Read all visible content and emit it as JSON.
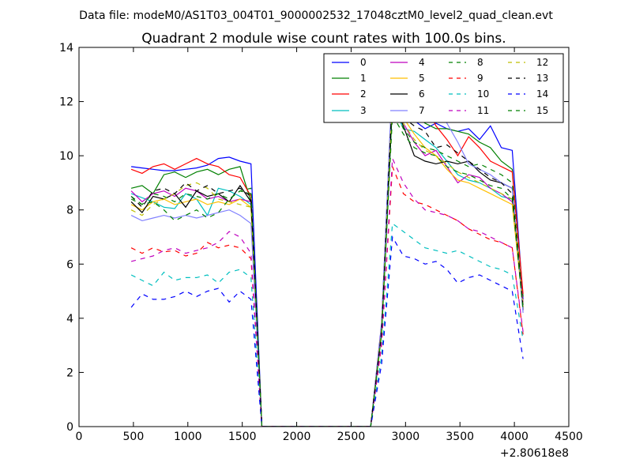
{
  "suptitle": "Data file: modeM0/AS1T03_004T01_9000002532_17048cztM0_level2_quad_clean.evt",
  "chart_data": {
    "type": "line",
    "title": "Quadrant 2 module wise count rates with 100.0s bins.",
    "xlabel": "",
    "ylabel": "",
    "x_offset_label": "+2.80618e8",
    "xlim": [
      0,
      4500
    ],
    "ylim": [
      0,
      14
    ],
    "xticks": [
      0,
      500,
      1000,
      1500,
      2000,
      2500,
      3000,
      3500,
      4000,
      4500
    ],
    "yticks": [
      0,
      2,
      4,
      6,
      8,
      10,
      12,
      14
    ],
    "grid": false,
    "legend": {
      "placement": "top-right",
      "columns": 4
    },
    "x": [
      480,
      580,
      680,
      780,
      880,
      980,
      1080,
      1180,
      1280,
      1380,
      1480,
      1580,
      1680,
      1780,
      1880,
      1980,
      2080,
      2180,
      2280,
      2380,
      2480,
      2580,
      2680,
      2780,
      2880,
      2980,
      3080,
      3180,
      3280,
      3380,
      3480,
      3580,
      3680,
      3780,
      3880,
      3980,
      4080
    ],
    "series": [
      {
        "name": "0",
        "color": "#0000ff",
        "dash": "solid",
        "values": [
          9.6,
          9.55,
          9.5,
          9.45,
          9.45,
          9.5,
          9.55,
          9.65,
          9.9,
          9.95,
          9.8,
          9.7,
          0,
          0,
          0,
          0,
          0,
          0,
          0,
          0,
          0,
          0,
          0,
          3.8,
          12.8,
          12.0,
          11.3,
          11.0,
          11.2,
          11.0,
          10.9,
          11.0,
          10.6,
          11.1,
          10.3,
          10.2,
          4.7
        ]
      },
      {
        "name": "1",
        "color": "#008000",
        "dash": "solid",
        "values": [
          8.8,
          8.9,
          8.6,
          9.3,
          9.4,
          9.2,
          9.4,
          9.5,
          9.3,
          9.5,
          9.6,
          8.3,
          0,
          0,
          0,
          0,
          0,
          0,
          0,
          0,
          0,
          0,
          0,
          3.6,
          12.5,
          11.6,
          11.5,
          11.2,
          11.0,
          11.0,
          10.9,
          10.8,
          10.5,
          10.3,
          9.8,
          9.5,
          4.8
        ]
      },
      {
        "name": "2",
        "color": "#ff0000",
        "dash": "solid",
        "values": [
          9.5,
          9.35,
          9.6,
          9.7,
          9.5,
          9.7,
          9.9,
          9.7,
          9.6,
          9.3,
          9.2,
          8.5,
          0,
          0,
          0,
          0,
          0,
          0,
          0,
          0,
          0,
          0,
          0,
          3.7,
          12.3,
          11.5,
          11.3,
          11.9,
          11.1,
          10.6,
          10.0,
          10.7,
          10.3,
          9.8,
          9.6,
          9.4,
          4.9
        ]
      },
      {
        "name": "3",
        "color": "#00bfbf",
        "dash": "solid",
        "values": [
          8.6,
          8.45,
          8.3,
          8.1,
          8.05,
          8.6,
          8.4,
          7.8,
          8.8,
          8.7,
          8.5,
          8.2,
          0,
          0,
          0,
          0,
          0,
          0,
          0,
          0,
          0,
          0,
          0,
          3.5,
          11.9,
          11.0,
          10.9,
          10.6,
          10.3,
          9.8,
          9.3,
          9.1,
          9.0,
          8.8,
          8.5,
          8.4,
          4.5
        ]
      },
      {
        "name": "4",
        "color": "#bf00bf",
        "dash": "solid",
        "values": [
          8.7,
          8.3,
          8.6,
          8.7,
          8.5,
          8.8,
          8.7,
          8.4,
          8.5,
          8.3,
          8.4,
          8.3,
          0,
          0,
          0,
          0,
          0,
          0,
          0,
          0,
          0,
          0,
          0,
          3.6,
          12.6,
          11.2,
          10.5,
          10.0,
          10.2,
          9.6,
          9.0,
          9.3,
          9.2,
          8.8,
          8.6,
          8.3,
          4.6
        ]
      },
      {
        "name": "5",
        "color": "#ffbf00",
        "dash": "solid",
        "values": [
          8.2,
          8.0,
          8.3,
          8.4,
          8.2,
          8.3,
          8.4,
          8.2,
          8.3,
          8.2,
          8.4,
          8.1,
          0,
          0,
          0,
          0,
          0,
          0,
          0,
          0,
          0,
          0,
          0,
          3.5,
          12.7,
          11.4,
          10.8,
          10.3,
          10.0,
          9.5,
          9.1,
          9.0,
          8.8,
          8.6,
          8.4,
          8.2,
          4.4
        ]
      },
      {
        "name": "6",
        "color": "#000000",
        "dash": "solid",
        "values": [
          8.3,
          7.9,
          8.5,
          8.4,
          8.6,
          8.1,
          8.7,
          8.5,
          8.6,
          8.3,
          8.9,
          8.3,
          0,
          0,
          0,
          0,
          0,
          0,
          0,
          0,
          0,
          0,
          0,
          3.6,
          12.0,
          11.1,
          10.0,
          9.8,
          9.7,
          9.8,
          9.7,
          9.8,
          9.4,
          9.1,
          9.0,
          8.8,
          4.3
        ]
      },
      {
        "name": "7",
        "color": "#8080ff",
        "dash": "solid",
        "values": [
          7.8,
          7.6,
          7.7,
          7.8,
          7.7,
          7.8,
          7.7,
          7.8,
          7.9,
          8.0,
          7.8,
          7.5,
          0,
          0,
          0,
          0,
          0,
          0,
          0,
          0,
          0,
          0,
          0,
          3.7,
          12.9,
          12.8,
          12.4,
          12.4,
          11.8,
          11.2,
          10.5,
          9.7,
          9.5,
          9.3,
          9.0,
          8.8,
          4.2
        ]
      },
      {
        "name": "8",
        "color": "#008000",
        "dash": "dashed",
        "values": [
          8.4,
          8.2,
          8.6,
          8.5,
          8.3,
          8.6,
          8.5,
          8.4,
          8.6,
          8.4,
          8.7,
          8.6,
          0,
          0,
          0,
          0,
          0,
          0,
          0,
          0,
          0,
          0,
          0,
          3.4,
          11.9,
          11.0,
          10.5,
          10.3,
          10.2,
          10.0,
          9.8,
          9.6,
          9.7,
          9.5,
          9.3,
          9.0,
          4.4
        ]
      },
      {
        "name": "9",
        "color": "#ff0000",
        "dash": "dashed",
        "values": [
          6.6,
          6.4,
          6.6,
          6.45,
          6.5,
          6.3,
          6.4,
          6.8,
          6.6,
          6.7,
          6.6,
          6.2,
          0,
          0,
          0,
          0,
          0,
          0,
          0,
          0,
          0,
          0,
          0,
          3.0,
          9.6,
          8.6,
          8.3,
          8.2,
          8.0,
          7.8,
          7.6,
          7.3,
          7.1,
          6.9,
          6.8,
          6.6,
          3.4
        ]
      },
      {
        "name": "10",
        "color": "#00bfbf",
        "dash": "dashed",
        "values": [
          5.6,
          5.4,
          5.2,
          5.7,
          5.4,
          5.5,
          5.5,
          5.6,
          5.3,
          5.7,
          5.8,
          5.5,
          0,
          0,
          0,
          0,
          0,
          0,
          0,
          0,
          0,
          0,
          0,
          2.6,
          7.5,
          7.2,
          6.9,
          6.6,
          6.5,
          6.4,
          6.5,
          6.3,
          6.1,
          5.9,
          5.8,
          5.6,
          3.2
        ]
      },
      {
        "name": "11",
        "color": "#bf00bf",
        "dash": "dashed",
        "values": [
          6.1,
          6.2,
          6.3,
          6.5,
          6.6,
          6.4,
          6.5,
          6.6,
          6.8,
          7.2,
          7.0,
          6.4,
          0,
          0,
          0,
          0,
          0,
          0,
          0,
          0,
          0,
          0,
          0,
          3.1,
          9.9,
          9.0,
          8.4,
          8.0,
          7.9,
          7.8,
          7.6,
          7.3,
          7.2,
          7.0,
          6.8,
          6.6,
          3.5
        ]
      },
      {
        "name": "12",
        "color": "#bfbf00",
        "dash": "dashed",
        "values": [
          8.0,
          7.8,
          8.2,
          8.4,
          8.6,
          8.9,
          9.0,
          8.8,
          8.4,
          8.3,
          8.2,
          8.1,
          0,
          0,
          0,
          0,
          0,
          0,
          0,
          0,
          0,
          0,
          0,
          3.6,
          12.2,
          11.2,
          10.6,
          10.2,
          10.0,
          9.7,
          9.4,
          9.2,
          9.0,
          8.8,
          8.6,
          8.4,
          4.5
        ]
      },
      {
        "name": "13",
        "color": "#000000",
        "dash": "dashed",
        "values": [
          8.5,
          8.1,
          8.7,
          8.8,
          8.6,
          9.0,
          8.7,
          8.9,
          8.6,
          8.7,
          8.8,
          8.5,
          0,
          0,
          0,
          0,
          0,
          0,
          0,
          0,
          0,
          0,
          0,
          3.5,
          12.4,
          11.4,
          11.1,
          10.9,
          10.3,
          10.4,
          10.1,
          9.8,
          9.5,
          9.2,
          9.0,
          8.6,
          4.4
        ]
      },
      {
        "name": "14",
        "color": "#0000ff",
        "dash": "dashed",
        "values": [
          4.4,
          4.9,
          4.7,
          4.7,
          4.8,
          5.0,
          4.8,
          5.0,
          5.1,
          4.6,
          5.0,
          4.7,
          0,
          0,
          0,
          0,
          0,
          0,
          0,
          0,
          0,
          0,
          0,
          2.3,
          7.0,
          6.3,
          6.2,
          6.0,
          6.1,
          5.8,
          5.3,
          5.5,
          5.6,
          5.4,
          5.2,
          5.0,
          2.5
        ]
      },
      {
        "name": "15",
        "color": "#008000",
        "dash": "dashed",
        "values": [
          8.5,
          8.2,
          8.3,
          8.0,
          7.6,
          7.8,
          8.0,
          7.7,
          7.9,
          8.4,
          8.7,
          8.8,
          0,
          0,
          0,
          0,
          0,
          0,
          0,
          0,
          0,
          0,
          0,
          3.4,
          11.5,
          10.8,
          10.3,
          10.1,
          10.0,
          9.6,
          9.4,
          9.3,
          9.1,
          8.9,
          8.8,
          8.4,
          4.3
        ]
      }
    ]
  }
}
